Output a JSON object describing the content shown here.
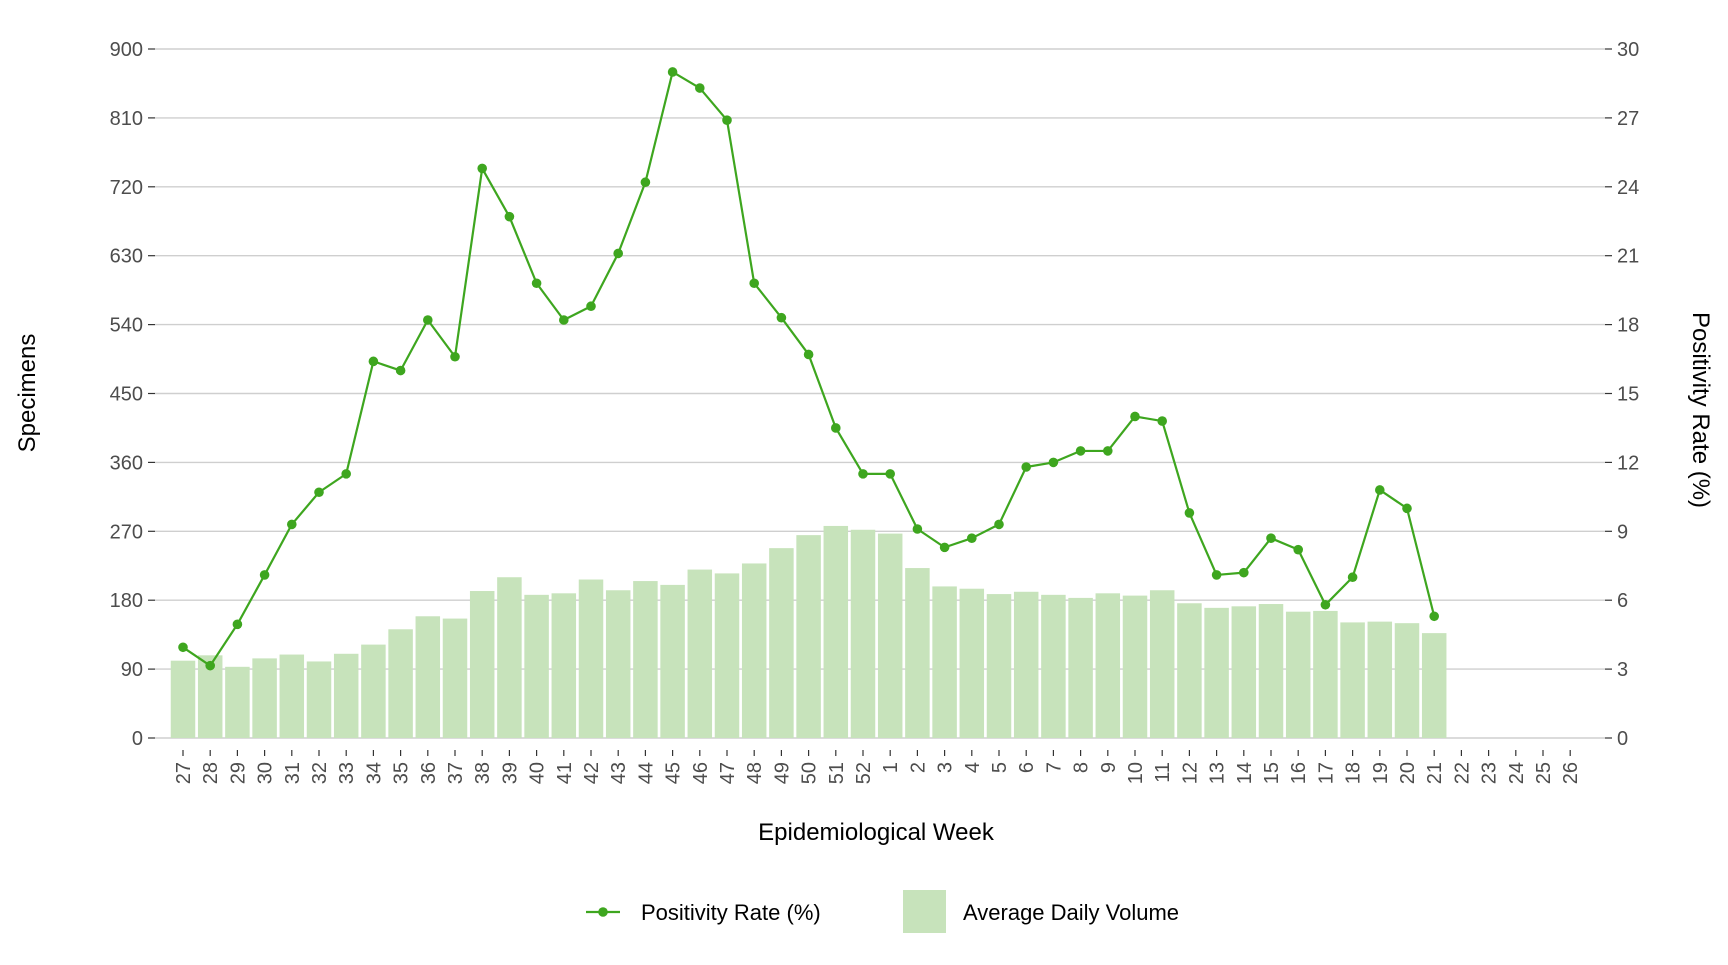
{
  "chart_data": {
    "type": "bar",
    "xlabel": "Epidemiological Week",
    "ylabel_left": "Specimens",
    "ylabel_right": "Positivity Rate (%)",
    "ylim_left": [
      0,
      900
    ],
    "ylim_right": [
      0,
      30
    ],
    "yticks_left": [
      0,
      90,
      180,
      270,
      360,
      450,
      540,
      630,
      720,
      810,
      900
    ],
    "yticks_right": [
      0,
      3,
      6,
      9,
      12,
      15,
      18,
      21,
      24,
      27,
      30
    ],
    "grid": "horizontal",
    "legend_position": "bottom",
    "categories": [
      "27",
      "28",
      "29",
      "30",
      "31",
      "32",
      "33",
      "34",
      "35",
      "36",
      "37",
      "38",
      "39",
      "40",
      "41",
      "42",
      "43",
      "44",
      "45",
      "46",
      "47",
      "48",
      "49",
      "50",
      "51",
      "52",
      "1",
      "2",
      "3",
      "4",
      "5",
      "6",
      "7",
      "8",
      "9",
      "10",
      "11",
      "12",
      "13",
      "14",
      "15",
      "16",
      "17",
      "18",
      "19",
      "20",
      "21",
      "22",
      "23",
      "24",
      "25",
      "26"
    ],
    "series": [
      {
        "name": "Average Daily Volume",
        "kind": "bar",
        "axis": "left",
        "color": "#c7e3bb",
        "values": [
          101,
          108,
          93,
          104,
          109,
          100,
          110,
          122,
          142,
          159,
          156,
          192,
          210,
          187,
          189,
          207,
          193,
          205,
          200,
          220,
          215,
          228,
          248,
          265,
          277,
          272,
          267,
          222,
          198,
          195,
          188,
          191,
          187,
          183,
          189,
          186,
          193,
          176,
          170,
          172,
          175,
          165,
          166,
          151,
          152,
          150,
          137,
          null,
          null,
          null,
          null,
          null
        ]
      },
      {
        "name": "Positivity Rate (%)",
        "kind": "line",
        "axis": "right",
        "color": "#3ea61f",
        "values": [
          3.95,
          3.15,
          4.95,
          7.1,
          9.3,
          10.7,
          11.5,
          16.4,
          16.0,
          18.2,
          16.6,
          24.8,
          22.7,
          19.8,
          18.2,
          18.8,
          21.1,
          24.2,
          29.0,
          28.3,
          26.9,
          19.8,
          18.3,
          16.7,
          13.5,
          11.5,
          11.5,
          9.1,
          8.3,
          8.7,
          9.3,
          11.8,
          12.0,
          12.5,
          12.5,
          14.0,
          13.8,
          9.8,
          7.1,
          7.2,
          8.7,
          8.2,
          5.8,
          7.0,
          10.8,
          10.0,
          5.3,
          null,
          null,
          null,
          null,
          null
        ]
      }
    ]
  },
  "legend": {
    "line_label": "Positivity Rate (%)",
    "bar_label": "Average Daily Volume"
  }
}
